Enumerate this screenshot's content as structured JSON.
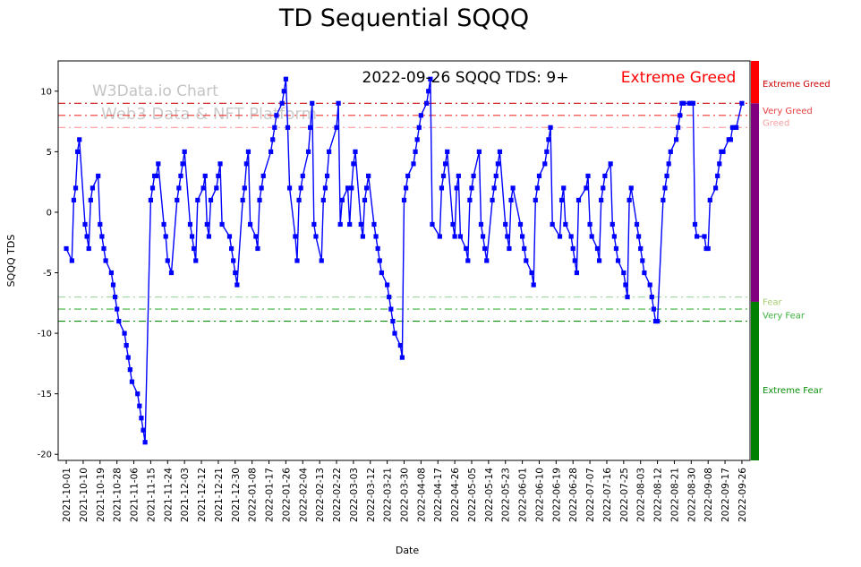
{
  "title": "TD Sequential SQQQ",
  "annotation": {
    "date_text": "2022-09-26 SQQQ TDS: 9+",
    "sentiment_text": "Extreme Greed",
    "sentiment_color": "#ff0000"
  },
  "watermark": {
    "line1": "W3Data.io Chart",
    "line2": "Web3 Data & NFT Platform"
  },
  "chart_data": {
    "type": "line",
    "title": "TD Sequential SQQQ",
    "xlabel": "Date",
    "ylabel": "SQQQ TDS",
    "ylim": [
      -20.5,
      12.5
    ],
    "yticks": [
      -20,
      -15,
      -10,
      -5,
      0,
      5,
      10
    ],
    "xticks": [
      "2021-10-01",
      "2021-10-10",
      "2021-10-19",
      "2021-10-28",
      "2021-11-06",
      "2021-11-15",
      "2021-11-24",
      "2021-12-03",
      "2021-12-12",
      "2021-12-21",
      "2021-12-30",
      "2022-01-08",
      "2022-01-17",
      "2022-01-26",
      "2022-02-04",
      "2022-02-13",
      "2022-02-22",
      "2022-03-03",
      "2022-03-12",
      "2022-03-21",
      "2022-03-30",
      "2022-04-08",
      "2022-04-17",
      "2022-04-26",
      "2022-05-05",
      "2022-05-14",
      "2022-05-23",
      "2022-06-01",
      "2022-06-10",
      "2022-06-19",
      "2022-06-28",
      "2022-07-07",
      "2022-07-16",
      "2022-07-25",
      "2022-08-03",
      "2022-08-12",
      "2022-08-21",
      "2022-08-30",
      "2022-09-08",
      "2022-09-17",
      "2022-09-26"
    ],
    "line_color": "#0000ff",
    "marker": "square",
    "grid": false,
    "legend": "none",
    "thresholds": [
      {
        "value": 9,
        "color": "#cc1111",
        "label": "Extreme Greed"
      },
      {
        "value": 8,
        "color": "#ee3333",
        "label": "Very Greed"
      },
      {
        "value": 7,
        "color": "#ff9999",
        "label": "Greed"
      },
      {
        "value": -7,
        "color": "#9fd89f",
        "label": "Fear"
      },
      {
        "value": -8,
        "color": "#3cb43c",
        "label": "Very Fear"
      },
      {
        "value": -9,
        "color": "#0a8f0a",
        "label": "Extreme Fear"
      }
    ],
    "zone_bar": [
      {
        "name": "extreme-greed",
        "from": 9,
        "to": 12.5,
        "color": "#ff0000"
      },
      {
        "name": "neutral",
        "from": -7.4,
        "to": 9,
        "color": "#800080"
      },
      {
        "name": "fear",
        "from": -20.5,
        "to": -7.4,
        "color": "#008000"
      }
    ],
    "zone_labels": [
      {
        "text": "Extreme Greed",
        "y": 10.6,
        "color": "#cc0000"
      },
      {
        "text": "Very Greed",
        "y": 8.4,
        "color": "#e84040"
      },
      {
        "text": "Greed",
        "y": 7.4,
        "color": "#f4a0a0"
      },
      {
        "text": "Fear",
        "y": -7.4,
        "color": "#a8cf70"
      },
      {
        "text": "Very Fear",
        "y": -8.5,
        "color": "#3cb43c"
      },
      {
        "text": "Extreme Fear",
        "y": -14.7,
        "color": "#0a8f0a"
      }
    ],
    "series": [
      {
        "name": "SQQQ TDS",
        "points": [
          [
            "2021-10-01",
            -3
          ],
          [
            "2021-10-04",
            -4
          ],
          [
            "2021-10-05",
            1
          ],
          [
            "2021-10-06",
            2
          ],
          [
            "2021-10-07",
            5
          ],
          [
            "2021-10-08",
            6
          ],
          [
            "2021-10-11",
            -1
          ],
          [
            "2021-10-12",
            -2
          ],
          [
            "2021-10-13",
            -3
          ],
          [
            "2021-10-14",
            1
          ],
          [
            "2021-10-15",
            2
          ],
          [
            "2021-10-18",
            3
          ],
          [
            "2021-10-19",
            -1
          ],
          [
            "2021-10-20",
            -2
          ],
          [
            "2021-10-21",
            -3
          ],
          [
            "2021-10-22",
            -4
          ],
          [
            "2021-10-25",
            -5
          ],
          [
            "2021-10-26",
            -6
          ],
          [
            "2021-10-27",
            -7
          ],
          [
            "2021-10-28",
            -8
          ],
          [
            "2021-10-29",
            -9
          ],
          [
            "2021-11-01",
            -10
          ],
          [
            "2021-11-02",
            -11
          ],
          [
            "2021-11-03",
            -12
          ],
          [
            "2021-11-04",
            -13
          ],
          [
            "2021-11-05",
            -14
          ],
          [
            "2021-11-08",
            -15
          ],
          [
            "2021-11-09",
            -16
          ],
          [
            "2021-11-10",
            -17
          ],
          [
            "2021-11-11",
            -18
          ],
          [
            "2021-11-12",
            -19
          ],
          [
            "2021-11-15",
            1
          ],
          [
            "2021-11-16",
            2
          ],
          [
            "2021-11-17",
            3
          ],
          [
            "2021-11-18",
            3
          ],
          [
            "2021-11-19",
            4
          ],
          [
            "2021-11-22",
            -1
          ],
          [
            "2021-11-23",
            -2
          ],
          [
            "2021-11-24",
            -4
          ],
          [
            "2021-11-26",
            -5
          ],
          [
            "2021-11-29",
            1
          ],
          [
            "2021-11-30",
            2
          ],
          [
            "2021-12-01",
            3
          ],
          [
            "2021-12-02",
            4
          ],
          [
            "2021-12-03",
            5
          ],
          [
            "2021-12-06",
            -1
          ],
          [
            "2021-12-07",
            -2
          ],
          [
            "2021-12-08",
            -3
          ],
          [
            "2021-12-09",
            -4
          ],
          [
            "2021-12-10",
            1
          ],
          [
            "2021-12-13",
            2
          ],
          [
            "2021-12-14",
            3
          ],
          [
            "2021-12-15",
            -1
          ],
          [
            "2021-12-16",
            -2
          ],
          [
            "2021-12-17",
            1
          ],
          [
            "2021-12-20",
            2
          ],
          [
            "2021-12-21",
            3
          ],
          [
            "2021-12-22",
            4
          ],
          [
            "2021-12-23",
            -1
          ],
          [
            "2021-12-27",
            -2
          ],
          [
            "2021-12-28",
            -3
          ],
          [
            "2021-12-29",
            -4
          ],
          [
            "2021-12-30",
            -5
          ],
          [
            "2021-12-31",
            -6
          ],
          [
            "2022-01-03",
            1
          ],
          [
            "2022-01-04",
            2
          ],
          [
            "2022-01-05",
            4
          ],
          [
            "2022-01-06",
            5
          ],
          [
            "2022-01-07",
            -1
          ],
          [
            "2022-01-10",
            -2
          ],
          [
            "2022-01-11",
            -3
          ],
          [
            "2022-01-12",
            1
          ],
          [
            "2022-01-13",
            2
          ],
          [
            "2022-01-14",
            3
          ],
          [
            "2022-01-18",
            5
          ],
          [
            "2022-01-19",
            6
          ],
          [
            "2022-01-20",
            7
          ],
          [
            "2022-01-21",
            8
          ],
          [
            "2022-01-24",
            9
          ],
          [
            "2022-01-25",
            10
          ],
          [
            "2022-01-26",
            11
          ],
          [
            "2022-01-27",
            7
          ],
          [
            "2022-01-28",
            2
          ],
          [
            "2022-01-31",
            -2
          ],
          [
            "2022-02-01",
            -4
          ],
          [
            "2022-02-02",
            1
          ],
          [
            "2022-02-03",
            2
          ],
          [
            "2022-02-04",
            3
          ],
          [
            "2022-02-07",
            5
          ],
          [
            "2022-02-08",
            7
          ],
          [
            "2022-02-09",
            9
          ],
          [
            "2022-02-10",
            -1
          ],
          [
            "2022-02-11",
            -2
          ],
          [
            "2022-02-14",
            -4
          ],
          [
            "2022-02-15",
            1
          ],
          [
            "2022-02-16",
            2
          ],
          [
            "2022-02-17",
            3
          ],
          [
            "2022-02-18",
            5
          ],
          [
            "2022-02-22",
            7
          ],
          [
            "2022-02-23",
            9
          ],
          [
            "2022-02-24",
            -1
          ],
          [
            "2022-02-25",
            1
          ],
          [
            "2022-02-28",
            2
          ],
          [
            "2022-03-01",
            -1
          ],
          [
            "2022-03-02",
            2
          ],
          [
            "2022-03-03",
            4
          ],
          [
            "2022-03-04",
            5
          ],
          [
            "2022-03-07",
            -1
          ],
          [
            "2022-03-08",
            -2
          ],
          [
            "2022-03-09",
            1
          ],
          [
            "2022-03-10",
            2
          ],
          [
            "2022-03-11",
            3
          ],
          [
            "2022-03-14",
            -1
          ],
          [
            "2022-03-15",
            -2
          ],
          [
            "2022-03-16",
            -3
          ],
          [
            "2022-03-17",
            -4
          ],
          [
            "2022-03-18",
            -5
          ],
          [
            "2022-03-21",
            -6
          ],
          [
            "2022-03-22",
            -7
          ],
          [
            "2022-03-23",
            -8
          ],
          [
            "2022-03-24",
            -9
          ],
          [
            "2022-03-25",
            -10
          ],
          [
            "2022-03-28",
            -11
          ],
          [
            "2022-03-29",
            -12
          ],
          [
            "2022-03-30",
            1
          ],
          [
            "2022-03-31",
            2
          ],
          [
            "2022-04-01",
            3
          ],
          [
            "2022-04-04",
            4
          ],
          [
            "2022-04-05",
            5
          ],
          [
            "2022-04-06",
            6
          ],
          [
            "2022-04-07",
            7
          ],
          [
            "2022-04-08",
            8
          ],
          [
            "2022-04-11",
            9
          ],
          [
            "2022-04-12",
            10
          ],
          [
            "2022-04-13",
            11
          ],
          [
            "2022-04-14",
            -1
          ],
          [
            "2022-04-18",
            -2
          ],
          [
            "2022-04-19",
            2
          ],
          [
            "2022-04-20",
            3
          ],
          [
            "2022-04-21",
            4
          ],
          [
            "2022-04-22",
            5
          ],
          [
            "2022-04-25",
            -1
          ],
          [
            "2022-04-26",
            -2
          ],
          [
            "2022-04-27",
            2
          ],
          [
            "2022-04-28",
            3
          ],
          [
            "2022-04-29",
            -2
          ],
          [
            "2022-05-02",
            -3
          ],
          [
            "2022-05-03",
            -4
          ],
          [
            "2022-05-04",
            1
          ],
          [
            "2022-05-05",
            2
          ],
          [
            "2022-05-06",
            3
          ],
          [
            "2022-05-09",
            5
          ],
          [
            "2022-05-10",
            -1
          ],
          [
            "2022-05-11",
            -2
          ],
          [
            "2022-05-12",
            -3
          ],
          [
            "2022-05-13",
            -4
          ],
          [
            "2022-05-16",
            1
          ],
          [
            "2022-05-17",
            2
          ],
          [
            "2022-05-18",
            3
          ],
          [
            "2022-05-19",
            4
          ],
          [
            "2022-05-20",
            5
          ],
          [
            "2022-05-23",
            -1
          ],
          [
            "2022-05-24",
            -2
          ],
          [
            "2022-05-25",
            -3
          ],
          [
            "2022-05-26",
            1
          ],
          [
            "2022-05-27",
            2
          ],
          [
            "2022-05-31",
            -1
          ],
          [
            "2022-06-01",
            -2
          ],
          [
            "2022-06-02",
            -3
          ],
          [
            "2022-06-03",
            -4
          ],
          [
            "2022-06-06",
            -5
          ],
          [
            "2022-06-07",
            -6
          ],
          [
            "2022-06-08",
            1
          ],
          [
            "2022-06-09",
            2
          ],
          [
            "2022-06-10",
            3
          ],
          [
            "2022-06-13",
            4
          ],
          [
            "2022-06-14",
            5
          ],
          [
            "2022-06-15",
            6
          ],
          [
            "2022-06-16",
            7
          ],
          [
            "2022-06-17",
            -1
          ],
          [
            "2022-06-21",
            -2
          ],
          [
            "2022-06-22",
            1
          ],
          [
            "2022-06-23",
            2
          ],
          [
            "2022-06-24",
            -1
          ],
          [
            "2022-06-27",
            -2
          ],
          [
            "2022-06-28",
            -3
          ],
          [
            "2022-06-29",
            -4
          ],
          [
            "2022-06-30",
            -5
          ],
          [
            "2022-07-01",
            1
          ],
          [
            "2022-07-05",
            2
          ],
          [
            "2022-07-06",
            3
          ],
          [
            "2022-07-07",
            -1
          ],
          [
            "2022-07-08",
            -2
          ],
          [
            "2022-07-11",
            -3
          ],
          [
            "2022-07-12",
            -4
          ],
          [
            "2022-07-13",
            1
          ],
          [
            "2022-07-14",
            2
          ],
          [
            "2022-07-15",
            3
          ],
          [
            "2022-07-18",
            4
          ],
          [
            "2022-07-19",
            -1
          ],
          [
            "2022-07-20",
            -2
          ],
          [
            "2022-07-21",
            -3
          ],
          [
            "2022-07-22",
            -4
          ],
          [
            "2022-07-25",
            -5
          ],
          [
            "2022-07-26",
            -6
          ],
          [
            "2022-07-27",
            -7
          ],
          [
            "2022-07-28",
            1
          ],
          [
            "2022-07-29",
            2
          ],
          [
            "2022-08-01",
            -1
          ],
          [
            "2022-08-02",
            -2
          ],
          [
            "2022-08-03",
            -3
          ],
          [
            "2022-08-04",
            -4
          ],
          [
            "2022-08-05",
            -5
          ],
          [
            "2022-08-08",
            -6
          ],
          [
            "2022-08-09",
            -7
          ],
          [
            "2022-08-10",
            -8
          ],
          [
            "2022-08-11",
            -9
          ],
          [
            "2022-08-12",
            -9
          ],
          [
            "2022-08-15",
            1
          ],
          [
            "2022-08-16",
            2
          ],
          [
            "2022-08-17",
            3
          ],
          [
            "2022-08-18",
            4
          ],
          [
            "2022-08-19",
            5
          ],
          [
            "2022-08-22",
            6
          ],
          [
            "2022-08-23",
            7
          ],
          [
            "2022-08-24",
            8
          ],
          [
            "2022-08-25",
            9
          ],
          [
            "2022-08-26",
            9
          ],
          [
            "2022-08-29",
            9
          ],
          [
            "2022-08-30",
            9
          ],
          [
            "2022-08-31",
            9
          ],
          [
            "2022-09-01",
            -1
          ],
          [
            "2022-09-02",
            -2
          ],
          [
            "2022-09-06",
            -2
          ],
          [
            "2022-09-07",
            -3
          ],
          [
            "2022-09-08",
            -3
          ],
          [
            "2022-09-09",
            1
          ],
          [
            "2022-09-12",
            2
          ],
          [
            "2022-09-13",
            3
          ],
          [
            "2022-09-14",
            4
          ],
          [
            "2022-09-15",
            5
          ],
          [
            "2022-09-16",
            5
          ],
          [
            "2022-09-19",
            6
          ],
          [
            "2022-09-20",
            6
          ],
          [
            "2022-09-21",
            7
          ],
          [
            "2022-09-22",
            7
          ],
          [
            "2022-09-23",
            7
          ],
          [
            "2022-09-26",
            9
          ]
        ]
      }
    ]
  }
}
